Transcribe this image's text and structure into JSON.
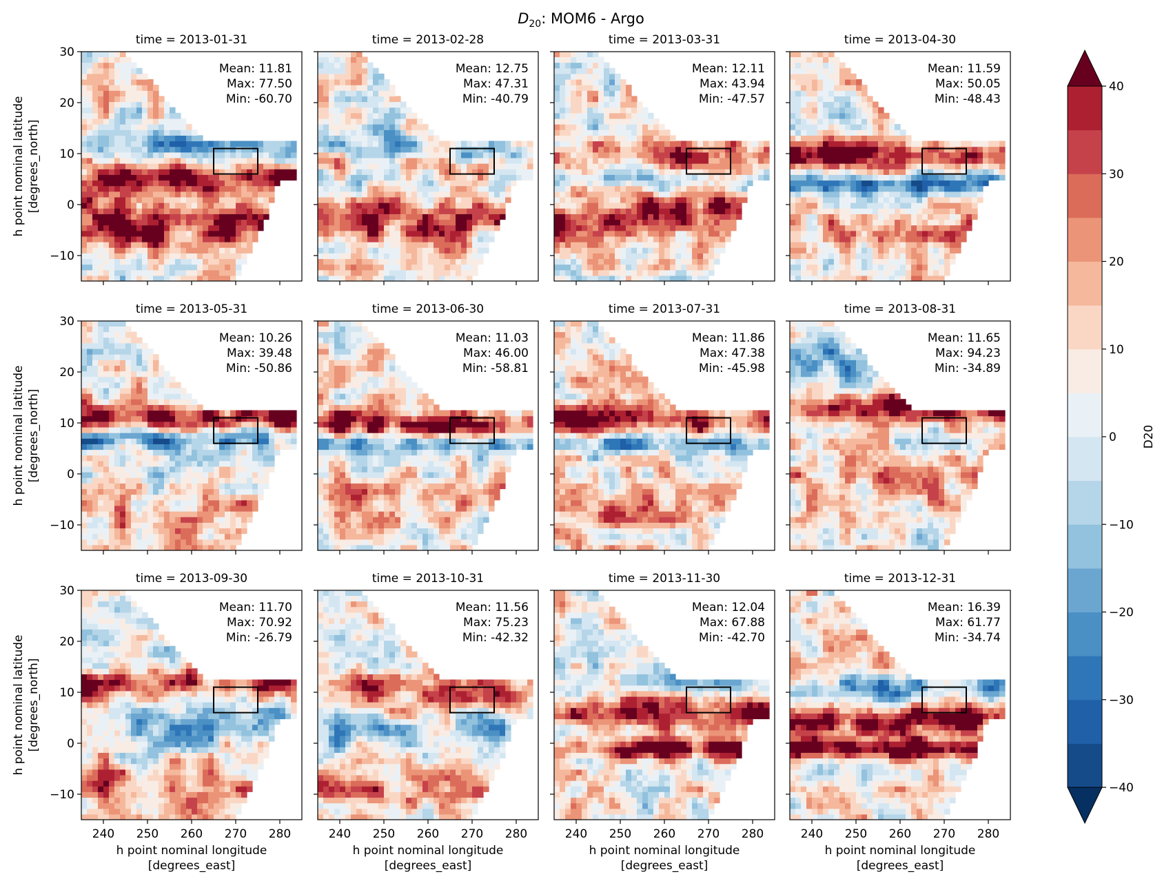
{
  "figure": {
    "title_prefix": "D",
    "title_sub": "20",
    "title_rest": ": MOM6 - Argo"
  },
  "colorbar": {
    "label": "D20",
    "ticks": [
      "40",
      "30",
      "20",
      "10",
      "0",
      "−10",
      "−20",
      "−30",
      "−40"
    ],
    "levels": [
      -40,
      -35,
      -30,
      -25,
      -20,
      -15,
      -10,
      -5,
      0,
      5,
      10,
      15,
      20,
      25,
      30,
      35,
      40
    ],
    "colors": [
      "#164b8a",
      "#1f60a8",
      "#2f76b8",
      "#4a90c4",
      "#6ba6d1",
      "#92c2dd",
      "#b5d5e8",
      "#d4e6f1",
      "#eaf1f6",
      "#f8ece4",
      "#fad7c4",
      "#f5b89c",
      "#eb9478",
      "#db6c5a",
      "#c6424b",
      "#ad2031",
      "#861228"
    ],
    "extend_colors": {
      "under": "#053061",
      "over": "#67001f"
    }
  },
  "axes_labels": {
    "ylabel_line1": "h point nominal latitude",
    "ylabel_line2": "[degrees_north]",
    "xlabel_line1": "h point nominal longitude",
    "xlabel_line2": "[degrees_east]",
    "yticks": [
      "30",
      "20",
      "10",
      "0",
      "−10"
    ],
    "xticks": [
      "240",
      "250",
      "260",
      "270",
      "280"
    ]
  },
  "chart_data": {
    "type": "heatmap",
    "title": "D20: MOM6 - Argo",
    "variable": "D20",
    "xlabel": "h point nominal longitude [degrees_east]",
    "ylabel": "h point nominal latitude [degrees_north]",
    "xlim": [
      235,
      285
    ],
    "ylim": [
      -15,
      30
    ],
    "clim": [
      -40,
      40
    ],
    "box": {
      "lon": [
        265,
        275
      ],
      "lat": [
        6,
        11
      ]
    },
    "panels": [
      {
        "time": "2013-01-31",
        "title": "time = 2013-01-31",
        "stats": {
          "mean": "Mean: 11.81",
          "max": "Max: 77.50",
          "min": "Min: -60.70"
        }
      },
      {
        "time": "2013-02-28",
        "title": "time = 2013-02-28",
        "stats": {
          "mean": "Mean: 12.75",
          "max": "Max: 47.31",
          "min": "Min: -40.79"
        }
      },
      {
        "time": "2013-03-31",
        "title": "time = 2013-03-31",
        "stats": {
          "mean": "Mean: 12.11",
          "max": "Max: 43.94",
          "min": "Min: -47.57"
        }
      },
      {
        "time": "2013-04-30",
        "title": "time = 2013-04-30",
        "stats": {
          "mean": "Mean: 11.59",
          "max": "Max: 50.05",
          "min": "Min: -48.43"
        }
      },
      {
        "time": "2013-05-31",
        "title": "time = 2013-05-31",
        "stats": {
          "mean": "Mean: 10.26",
          "max": "Max: 39.48",
          "min": "Min: -50.86"
        }
      },
      {
        "time": "2013-06-30",
        "title": "time = 2013-06-30",
        "stats": {
          "mean": "Mean: 11.03",
          "max": "Max: 46.00",
          "min": "Min: -58.81"
        }
      },
      {
        "time": "2013-07-31",
        "title": "time = 2013-07-31",
        "stats": {
          "mean": "Mean: 11.86",
          "max": "Max: 47.38",
          "min": "Min: -45.98"
        }
      },
      {
        "time": "2013-08-31",
        "title": "time = 2013-08-31",
        "stats": {
          "mean": "Mean: 11.65",
          "max": "Max: 94.23",
          "min": "Min: -34.89"
        }
      },
      {
        "time": "2013-09-30",
        "title": "time = 2013-09-30",
        "stats": {
          "mean": "Mean: 11.70",
          "max": "Max: 70.92",
          "min": "Min: -26.79"
        }
      },
      {
        "time": "2013-10-31",
        "title": "time = 2013-10-31",
        "stats": {
          "mean": "Mean: 11.56",
          "max": "Max: 75.23",
          "min": "Min: -42.32"
        }
      },
      {
        "time": "2013-11-30",
        "title": "time = 2013-11-30",
        "stats": {
          "mean": "Mean: 12.04",
          "max": "Max: 67.88",
          "min": "Min: -42.70"
        }
      },
      {
        "time": "2013-12-31",
        "title": "time = 2013-12-31",
        "stats": {
          "mean": "Mean: 16.39",
          "max": "Max: 61.77",
          "min": "Min: -34.74"
        }
      }
    ],
    "bands": [
      [
        {
          "lat": 5,
          "val": 30,
          "width": 3
        },
        {
          "lat": -4,
          "val": 28,
          "width": 5
        },
        {
          "lat": 12,
          "val": -22,
          "width": 3
        }
      ],
      [
        {
          "lat": -3,
          "val": 28,
          "width": 4
        },
        {
          "lat": 10,
          "val": -18,
          "width": 4
        },
        {
          "lat": 8,
          "val": 22,
          "width": 2
        }
      ],
      [
        {
          "lat": -2,
          "val": 30,
          "width": 5
        },
        {
          "lat": 9,
          "val": 25,
          "width": 3
        },
        {
          "lat": 5,
          "val": -20,
          "width": 3
        }
      ],
      [
        {
          "lat": 4,
          "val": -32,
          "width": 2
        },
        {
          "lat": 10,
          "val": 28,
          "width": 3
        },
        {
          "lat": -5,
          "val": 10,
          "width": 4
        }
      ],
      [
        {
          "lat": 7,
          "val": -30,
          "width": 2
        },
        {
          "lat": 11,
          "val": 28,
          "width": 3
        },
        {
          "lat": -8,
          "val": 12,
          "width": 4
        }
      ],
      [
        {
          "lat": 10,
          "val": 30,
          "width": 3
        },
        {
          "lat": 6,
          "val": -25,
          "width": 2
        },
        {
          "lat": -4,
          "val": 12,
          "width": 4
        }
      ],
      [
        {
          "lat": 11,
          "val": 30,
          "width": 3
        },
        {
          "lat": 6,
          "val": -22,
          "width": 2
        },
        {
          "lat": -8,
          "val": 12,
          "width": 4
        }
      ],
      [
        {
          "lat": 13,
          "val": 32,
          "width": 3
        },
        {
          "lat": -2,
          "val": 14,
          "width": 4
        },
        {
          "lat": 22,
          "val": -18,
          "width": 4
        }
      ],
      [
        {
          "lat": 12,
          "val": 32,
          "width": 3
        },
        {
          "lat": -8,
          "val": 18,
          "width": 4
        },
        {
          "lat": 3,
          "val": -14,
          "width": 4
        }
      ],
      [
        {
          "lat": 10,
          "val": 20,
          "width": 4
        },
        {
          "lat": -10,
          "val": 18,
          "width": 3
        },
        {
          "lat": 2,
          "val": -16,
          "width": 4
        }
      ],
      [
        {
          "lat": 6,
          "val": 32,
          "width": 3
        },
        {
          "lat": -1,
          "val": 34,
          "width": 2
        },
        {
          "lat": 12,
          "val": -12,
          "width": 4
        }
      ],
      [
        {
          "lat": 5,
          "val": 34,
          "width": 3
        },
        {
          "lat": -1,
          "val": 38,
          "width": 2
        },
        {
          "lat": 10,
          "val": -20,
          "width": 3
        }
      ]
    ]
  }
}
